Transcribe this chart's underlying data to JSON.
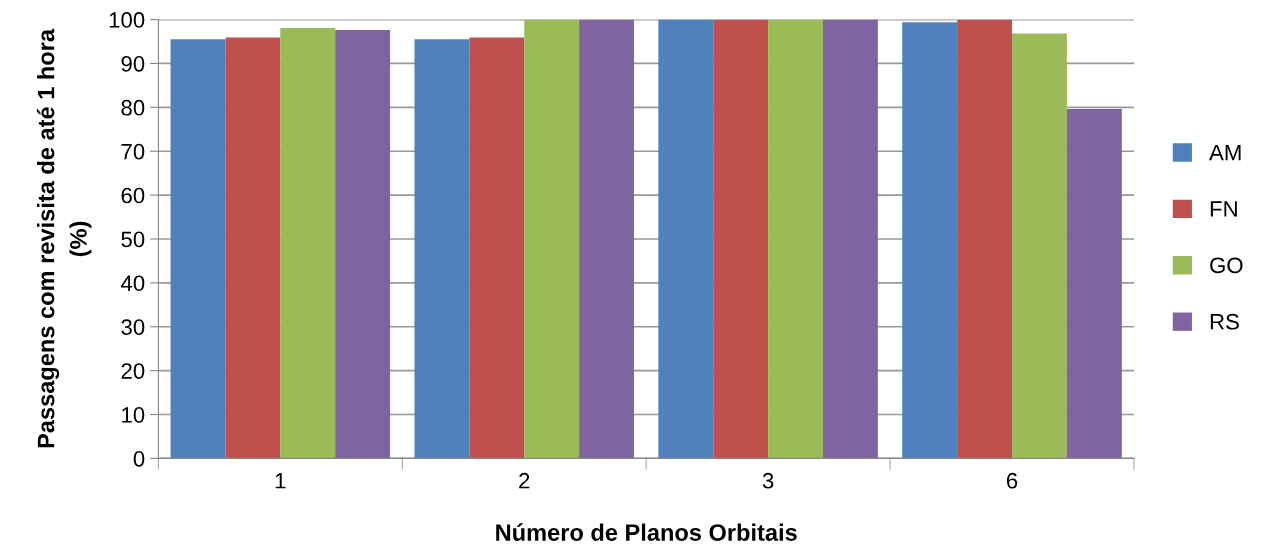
{
  "chart_data": {
    "type": "bar",
    "xlabel": "Número de Planos Orbitais",
    "ylabel": "Passagens com revisita de até 1 hora\n(%)",
    "categories": [
      "1",
      "2",
      "3",
      "6"
    ],
    "series": [
      {
        "name": "AM",
        "color": "#4f81bd",
        "values": [
          95.5,
          95.5,
          100,
          99.4
        ]
      },
      {
        "name": "FN",
        "color": "#c0504d",
        "values": [
          95.9,
          95.9,
          100,
          100
        ]
      },
      {
        "name": "GO",
        "color": "#9bbb59",
        "values": [
          98.1,
          100,
          100,
          96.8
        ]
      },
      {
        "name": "RS",
        "color": "#8064a2",
        "values": [
          97.6,
          100,
          100,
          79.6
        ]
      }
    ],
    "ylim": [
      0,
      100
    ],
    "yticks": [
      0,
      10,
      20,
      30,
      40,
      50,
      60,
      70,
      80,
      90,
      100
    ],
    "grid": "y",
    "legend": "right"
  }
}
